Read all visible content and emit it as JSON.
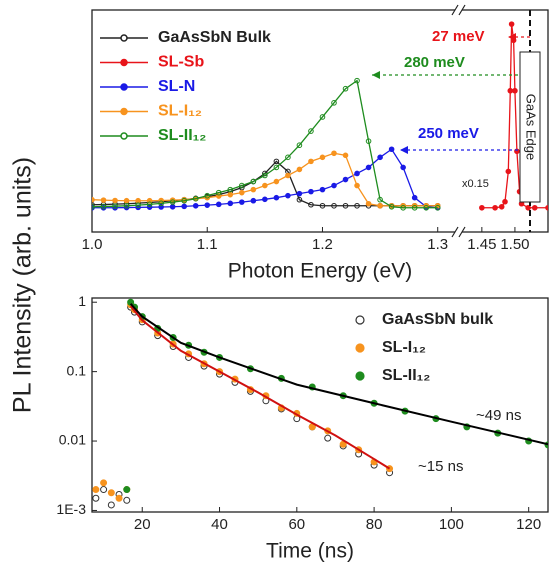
{
  "chart_data": [
    {
      "type": "line",
      "xlabel": "Photon Energy (eV)",
      "ylabel": "PL Intensity (arb. units)",
      "xlim": [
        1.0,
        1.55
      ],
      "xbreak": [
        1.315,
        1.42
      ],
      "ylim": [
        -0.1,
        1.0
      ],
      "xticks": [
        {
          "value": 1.0,
          "label": "1.0"
        },
        1.1,
        1.2,
        1.3,
        1.45,
        {
          "value": 1.5,
          "label": "1.50"
        }
      ],
      "legend": "upper left",
      "series": [
        {
          "name": "GaAsSbN Bulk",
          "color": "#222222",
          "marker": "open",
          "x": [
            1.0,
            1.01,
            1.02,
            1.03,
            1.04,
            1.05,
            1.06,
            1.07,
            1.08,
            1.09,
            1.1,
            1.11,
            1.12,
            1.13,
            1.14,
            1.15,
            1.16,
            1.17,
            1.18,
            1.19,
            1.2,
            1.21,
            1.22,
            1.23,
            1.24,
            1.25,
            1.26,
            1.27,
            1.28,
            1.29,
            1.3
          ],
          "values": [
            0.035,
            0.036,
            0.038,
            0.04,
            0.043,
            0.046,
            0.05,
            0.055,
            0.06,
            0.067,
            0.075,
            0.085,
            0.1,
            0.12,
            0.15,
            0.19,
            0.25,
            0.2,
            0.06,
            0.035,
            0.03,
            0.03,
            0.03,
            0.03,
            0.03,
            0.03,
            0.03,
            0.03,
            0.03,
            0.03,
            0.03
          ]
        },
        {
          "name": "SL-Sb",
          "color": "#e8141a",
          "marker": "filled",
          "x": [
            1.45,
            1.47,
            1.48,
            1.485,
            1.49,
            1.493,
            1.495,
            1.498,
            1.5,
            1.503,
            1.507,
            1.51,
            1.52,
            1.53,
            1.55
          ],
          "values": [
            0.02,
            0.02,
            0.025,
            0.05,
            0.2,
            0.6,
            0.93,
            0.85,
            0.6,
            0.3,
            0.1,
            0.04,
            0.02,
            0.02,
            0.02
          ]
        },
        {
          "name": "SL-N",
          "color": "#1a1ae6",
          "marker": "filled",
          "x": [
            1.0,
            1.01,
            1.02,
            1.03,
            1.04,
            1.05,
            1.06,
            1.07,
            1.08,
            1.09,
            1.1,
            1.11,
            1.12,
            1.13,
            1.14,
            1.15,
            1.16,
            1.17,
            1.18,
            1.19,
            1.2,
            1.21,
            1.22,
            1.23,
            1.24,
            1.25,
            1.26,
            1.27,
            1.28,
            1.29,
            1.3
          ],
          "values": [
            0.02,
            0.02,
            0.02,
            0.021,
            0.022,
            0.023,
            0.024,
            0.025,
            0.027,
            0.03,
            0.033,
            0.037,
            0.042,
            0.048,
            0.055,
            0.062,
            0.07,
            0.08,
            0.09,
            0.1,
            0.11,
            0.13,
            0.16,
            0.19,
            0.22,
            0.27,
            0.31,
            0.22,
            0.07,
            0.025,
            0.02
          ]
        },
        {
          "name": "SL-I₁₂",
          "color": "#f7931e",
          "marker": "filled",
          "x": [
            1.0,
            1.01,
            1.02,
            1.03,
            1.04,
            1.05,
            1.06,
            1.07,
            1.08,
            1.09,
            1.1,
            1.11,
            1.12,
            1.13,
            1.14,
            1.15,
            1.16,
            1.17,
            1.18,
            1.19,
            1.2,
            1.21,
            1.22,
            1.23,
            1.24,
            1.25,
            1.26,
            1.27,
            1.28,
            1.29,
            1.3
          ],
          "values": [
            0.06,
            0.058,
            0.056,
            0.055,
            0.055,
            0.055,
            0.056,
            0.058,
            0.06,
            0.065,
            0.07,
            0.078,
            0.085,
            0.095,
            0.11,
            0.13,
            0.15,
            0.18,
            0.21,
            0.25,
            0.27,
            0.29,
            0.28,
            0.13,
            0.04,
            0.03,
            0.03,
            0.03,
            0.03,
            0.03,
            0.03
          ]
        },
        {
          "name": "SL-II₁₂",
          "color": "#1e8c1e",
          "marker": "open",
          "x": [
            1.0,
            1.01,
            1.02,
            1.03,
            1.04,
            1.05,
            1.06,
            1.07,
            1.08,
            1.09,
            1.1,
            1.11,
            1.12,
            1.13,
            1.14,
            1.15,
            1.16,
            1.17,
            1.18,
            1.19,
            1.2,
            1.21,
            1.22,
            1.23,
            1.24,
            1.25,
            1.26,
            1.27,
            1.28,
            1.29,
            1.3
          ],
          "values": [
            0.025,
            0.026,
            0.028,
            0.03,
            0.033,
            0.037,
            0.042,
            0.048,
            0.055,
            0.065,
            0.08,
            0.095,
            0.11,
            0.13,
            0.15,
            0.18,
            0.22,
            0.27,
            0.33,
            0.4,
            0.47,
            0.54,
            0.61,
            0.65,
            0.35,
            0.06,
            0.025,
            0.02,
            0.02,
            0.02,
            0.02
          ]
        }
      ],
      "annotations": [
        {
          "text": "27 meV",
          "color": "#e8141a"
        },
        {
          "text": "280 meV",
          "color": "#1e8c1e"
        },
        {
          "text": "250 meV",
          "color": "#1a1ae6"
        },
        {
          "text": "x0.15",
          "color": "#222222"
        },
        {
          "text": "GaAs Edge",
          "color": "#222222"
        }
      ]
    },
    {
      "type": "scatter",
      "xlabel": "Time (ns)",
      "ylog": true,
      "xlim": [
        7,
        125
      ],
      "ylim": [
        0.00095,
        1.15
      ],
      "xticks": [
        20,
        40,
        60,
        80,
        100,
        120
      ],
      "yticks": [
        1,
        0.1,
        0.01,
        {
          "value": 0.001,
          "label": "1E-3"
        }
      ],
      "legend": "upper right",
      "series": [
        {
          "name": "GaAsSbN bulk",
          "color": "#333333",
          "marker": "open",
          "x": [
            8,
            10,
            12,
            14,
            16,
            17,
            18,
            20,
            24,
            28,
            32,
            36,
            40,
            44,
            48,
            52,
            56,
            60,
            64,
            68,
            72,
            76,
            80,
            84
          ],
          "values": [
            0.0015,
            0.002,
            0.0012,
            0.0017,
            0.0014,
            0.85,
            0.72,
            0.52,
            0.33,
            0.23,
            0.16,
            0.12,
            0.092,
            0.07,
            0.052,
            0.038,
            0.029,
            0.021,
            0.016,
            0.011,
            0.0085,
            0.0065,
            0.0045,
            0.0035
          ]
        },
        {
          "name": "SL-I₁₂",
          "color": "#f7931e",
          "marker": "filled",
          "x": [
            8,
            10,
            12,
            14,
            16,
            17,
            18,
            20,
            24,
            28,
            32,
            36,
            40,
            44,
            48,
            52,
            56,
            60,
            64,
            68,
            72,
            76,
            80,
            84
          ],
          "values": [
            0.002,
            0.0025,
            0.0018,
            0.0015,
            0.002,
            0.92,
            0.78,
            0.56,
            0.36,
            0.25,
            0.18,
            0.13,
            0.1,
            0.078,
            0.055,
            0.045,
            0.03,
            0.025,
            0.016,
            0.014,
            0.009,
            0.0075,
            0.005,
            0.004
          ]
        },
        {
          "name": "SL-II₁₂",
          "color": "#1e8c1e",
          "marker": "filled",
          "x": [
            16,
            17,
            18,
            20,
            24,
            28,
            32,
            36,
            40,
            48,
            56,
            64,
            72,
            80,
            88,
            96,
            104,
            112,
            120,
            125
          ],
          "values": [
            0.002,
            1.0,
            0.85,
            0.62,
            0.42,
            0.31,
            0.24,
            0.19,
            0.16,
            0.11,
            0.08,
            0.06,
            0.045,
            0.035,
            0.027,
            0.021,
            0.016,
            0.013,
            0.01,
            0.0088
          ]
        },
        {
          "color": "#d01010",
          "marker": "none",
          "x": [
            17,
            20,
            30,
            40,
            50,
            60,
            70,
            80,
            84
          ],
          "values": [
            0.88,
            0.55,
            0.2,
            0.1,
            0.05,
            0.024,
            0.012,
            0.0055,
            0.004
          ]
        },
        {
          "color": "#000000",
          "marker": "none",
          "x": [
            17,
            20,
            30,
            40,
            60,
            80,
            100,
            125
          ],
          "values": [
            0.95,
            0.62,
            0.26,
            0.16,
            0.065,
            0.035,
            0.019,
            0.009
          ]
        }
      ],
      "annotations": [
        {
          "text": "~49 ns",
          "color": "#222222"
        },
        {
          "text": "~15 ns",
          "color": "#222222"
        }
      ]
    }
  ]
}
